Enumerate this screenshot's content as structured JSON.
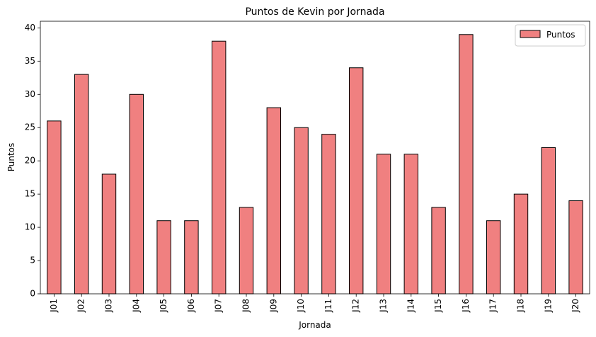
{
  "chart_data": {
    "type": "bar",
    "title": "Puntos de Kevin por Jornada",
    "xlabel": "Jornada",
    "ylabel": "Puntos",
    "categories": [
      "J01",
      "J02",
      "J03",
      "J04",
      "J05",
      "J06",
      "J07",
      "J08",
      "J09",
      "J10",
      "J11",
      "J12",
      "J13",
      "J14",
      "J15",
      "J16",
      "J17",
      "J18",
      "J19",
      "J20"
    ],
    "series": [
      {
        "name": "Puntos",
        "values": [
          26,
          33,
          18,
          30,
          11,
          11,
          38,
          13,
          28,
          25,
          24,
          34,
          21,
          21,
          13,
          39,
          11,
          15,
          22,
          14
        ],
        "color": "#f08080",
        "edge_color": "#000000"
      }
    ],
    "yticks": [
      0,
      5,
      10,
      15,
      20,
      25,
      30,
      35,
      40
    ],
    "ylim": [
      0,
      41
    ],
    "grid": false,
    "legend": "top-right"
  }
}
